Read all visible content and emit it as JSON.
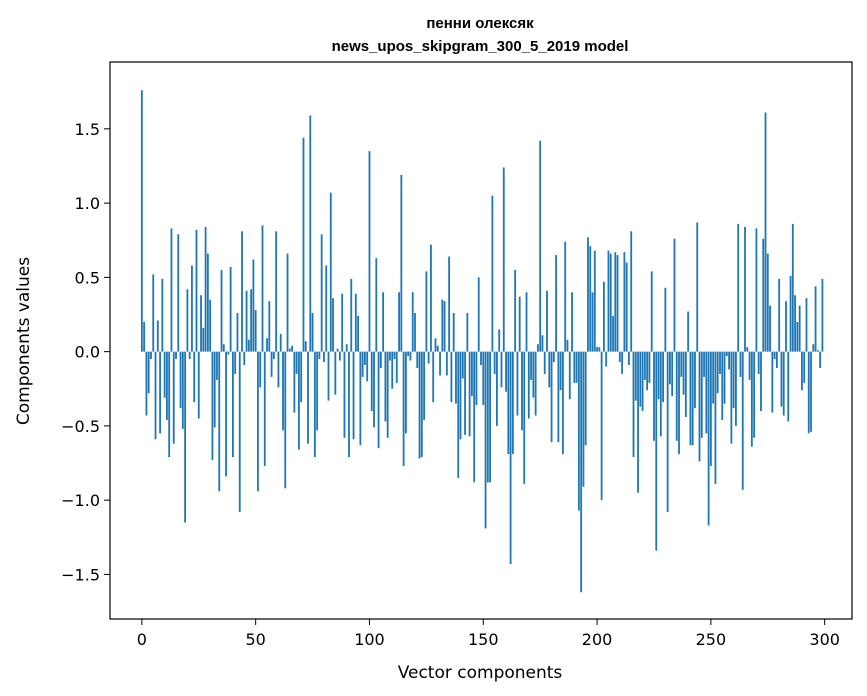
{
  "chart_data": {
    "type": "bar",
    "title_line1": "пенни олексяк",
    "title_line2": "news_upos_skipgram_300_5_2019 model",
    "xlabel": "Vector components",
    "ylabel": "Components values",
    "xlim": [
      -14,
      312
    ],
    "ylim": [
      -1.8,
      1.95
    ],
    "xticks": [
      0,
      50,
      100,
      150,
      200,
      250,
      300
    ],
    "yticks": [
      -1.5,
      -1.0,
      -0.5,
      0.0,
      0.5,
      1.0,
      1.5
    ],
    "ytick_labels": [
      "−1.5",
      "−1.0",
      "−0.5",
      "0.0",
      "0.5",
      "1.0",
      "1.5"
    ],
    "grid": false,
    "bar_color": "#1f77b4",
    "values": [
      1.76,
      0.2,
      -0.43,
      -0.28,
      -0.05,
      0.52,
      -0.59,
      0.21,
      -0.55,
      0.49,
      -0.31,
      -0.46,
      -0.71,
      0.83,
      -0.62,
      -0.05,
      0.79,
      -0.38,
      -0.52,
      -1.15,
      0.42,
      -0.05,
      0.58,
      -0.34,
      0.82,
      -0.45,
      0.38,
      0.16,
      0.84,
      0.66,
      0.35,
      -0.73,
      -0.51,
      -0.19,
      -0.94,
      0.55,
      0.05,
      -0.84,
      -0.02,
      0.57,
      -0.71,
      -0.15,
      0.26,
      -1.08,
      0.81,
      -0.09,
      0.41,
      0.08,
      0.42,
      0.62,
      0.28,
      -0.94,
      -0.24,
      0.85,
      -0.77,
      0.09,
      0.34,
      -0.17,
      -0.05,
      0.81,
      -0.24,
      0.12,
      -0.53,
      -0.92,
      0.66,
      0.02,
      0.04,
      -0.41,
      -0.15,
      -0.66,
      -0.34,
      1.44,
      0.07,
      -0.62,
      1.59,
      0.26,
      -0.71,
      -0.53,
      -0.05,
      0.79,
      -0.07,
      0.58,
      -0.33,
      1.07,
      0.36,
      -0.29,
      0.02,
      -0.06,
      0.39,
      -0.58,
      0.05,
      -0.71,
      0.49,
      -0.59,
      0.39,
      0.24,
      -0.63,
      -0.17,
      -0.09,
      -0.2,
      1.35,
      -0.4,
      -0.51,
      0.63,
      -0.65,
      -0.11,
      0.4,
      -0.47,
      -0.58,
      -0.06,
      -0.25,
      -0.05,
      -0.21,
      0.4,
      1.19,
      -0.77,
      -0.55,
      -0.03,
      -0.06,
      0.4,
      0.26,
      -0.11,
      -0.72,
      -0.71,
      -0.46,
      0.54,
      -0.08,
      0.72,
      -0.34,
      0.09,
      0.04,
      -0.16,
      0.35,
      0.34,
      -0.16,
      0.64,
      -0.34,
      0.26,
      -0.35,
      -0.85,
      -0.59,
      -0.18,
      -0.56,
      0.26,
      -0.57,
      -0.3,
      -0.88,
      -0.36,
      0.5,
      -0.09,
      -0.36,
      -1.19,
      -0.88,
      -0.88,
      1.05,
      -0.15,
      -0.5,
      0.15,
      -0.24,
      1.24,
      -0.27,
      -0.69,
      -1.43,
      -0.69,
      0.55,
      -0.43,
      0.37,
      -0.53,
      -0.89,
      0.4,
      -0.45,
      -0.19,
      -0.31,
      -0.43,
      0.05,
      1.42,
      0.11,
      -0.15,
      0.41,
      -0.24,
      -0.61,
      -0.07,
      0.65,
      -0.61,
      -0.26,
      -0.69,
      0.74,
      0.08,
      -0.32,
      0.4,
      -0.21,
      -0.21,
      -1.07,
      -1.62,
      -0.91,
      -0.63,
      0.77,
      0.71,
      0.4,
      0.68,
      0.03,
      0.03,
      -1.0,
      0.47,
      -0.1,
      0.68,
      0.66,
      0.24,
      0.67,
      0.65,
      -0.07,
      -0.15,
      0.67,
      0.6,
      -0.09,
      0.81,
      -0.71,
      -0.33,
      -0.95,
      -0.37,
      -0.4,
      -0.19,
      -0.26,
      -0.21,
      0.54,
      -0.6,
      -1.34,
      -0.32,
      -0.57,
      -0.34,
      0.43,
      -1.08,
      -0.22,
      -0.3,
      0.76,
      -0.6,
      -0.69,
      -0.17,
      -0.29,
      -0.44,
      0.27,
      -0.63,
      -0.63,
      -0.38,
      0.87,
      -0.74,
      -0.58,
      -0.17,
      -0.55,
      -1.17,
      -0.77,
      -0.35,
      -0.89,
      -0.28,
      -0.15,
      -0.46,
      -0.35,
      -0.03,
      -0.12,
      -0.62,
      -0.38,
      -0.5,
      0.86,
      -0.17,
      -0.93,
      0.84,
      0.03,
      -0.19,
      -0.64,
      -0.58,
      0.83,
      -0.15,
      -0.4,
      0.76,
      1.61,
      0.66,
      0.31,
      -0.41,
      -0.05,
      -0.11,
      0.49,
      -0.37,
      -0.43,
      0.34,
      -0.47,
      0.51,
      0.86,
      0.38,
      0.2,
      0.31,
      -0.26,
      -0.21,
      0.36,
      -0.55,
      -0.54,
      0.05,
      0.44,
      0.01,
      -0.11,
      0.49
    ]
  }
}
